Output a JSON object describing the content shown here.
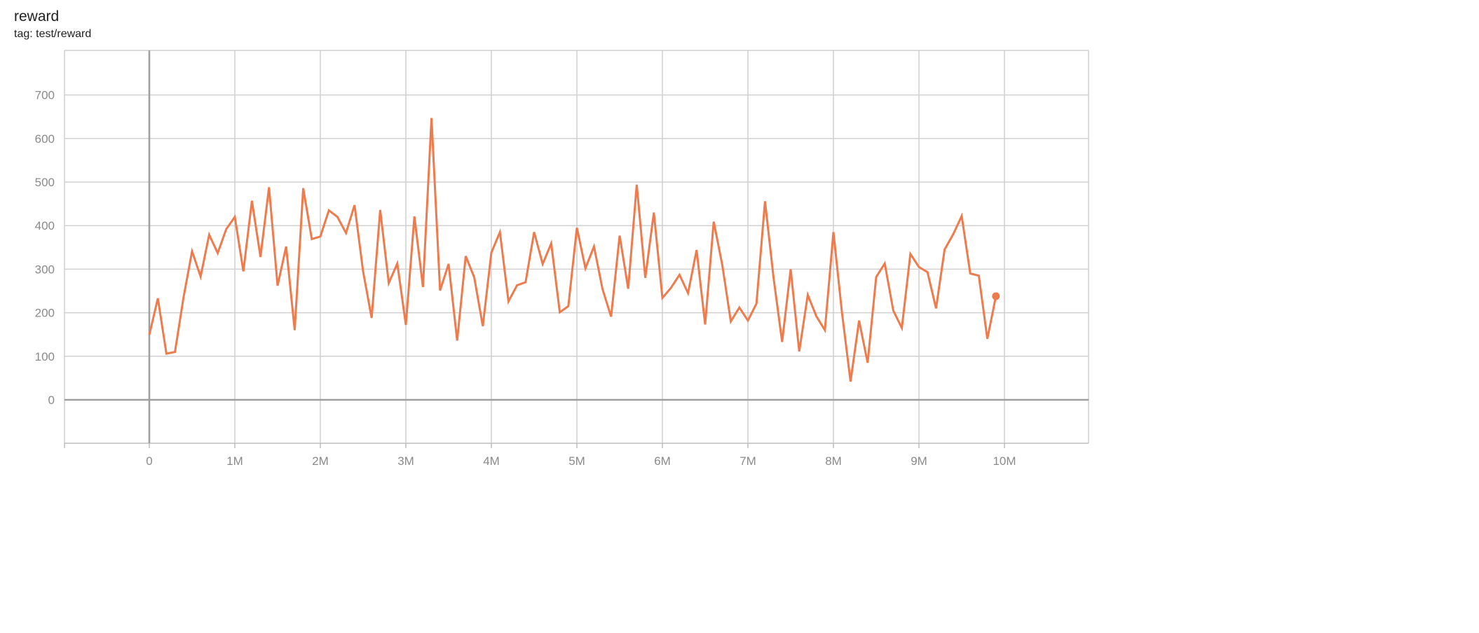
{
  "chart_data": {
    "type": "line",
    "title": "reward",
    "subtitle": "tag: test/reward",
    "xlabel": "",
    "ylabel": "",
    "xlim": [
      -1000000,
      11000000
    ],
    "ylim": [
      -100,
      800
    ],
    "grid": true,
    "x_ticks": [
      0,
      1000000,
      2000000,
      3000000,
      4000000,
      5000000,
      6000000,
      7000000,
      8000000,
      9000000,
      10000000
    ],
    "x_tick_labels": [
      "0",
      "1M",
      "2M",
      "3M",
      "4M",
      "5M",
      "6M",
      "7M",
      "8M",
      "9M",
      "10M"
    ],
    "y_ticks": [
      0,
      100,
      200,
      300,
      400,
      500,
      600,
      700
    ],
    "y_tick_labels": [
      "0",
      "100",
      "200",
      "300",
      "400",
      "500",
      "600",
      "700"
    ],
    "series": [
      {
        "color": "#ef7a4b",
        "x_start": 0,
        "x_step": 100000,
        "values": [
          149,
          233,
          106,
          110,
          235,
          341,
          283,
          379,
          337,
          392,
          420,
          295,
          457,
          328,
          488,
          262,
          352,
          160,
          486,
          369,
          375,
          435,
          420,
          383,
          447,
          295,
          188,
          436,
          268,
          313,
          172,
          421,
          259,
          647,
          251,
          312,
          136,
          330,
          281,
          169,
          338,
          385,
          226,
          263,
          270,
          385,
          312,
          359,
          201,
          215,
          395,
          302,
          352,
          254,
          191,
          377,
          255,
          494,
          280,
          430,
          234,
          257,
          287,
          245,
          344,
          173,
          409,
          310,
          180,
          212,
          182,
          221,
          456,
          280,
          133,
          300,
          111,
          241,
          192,
          160,
          385,
          200,
          42,
          182,
          85,
          282,
          313,
          205,
          165,
          335,
          305,
          293,
          210,
          345,
          380,
          422,
          290,
          285,
          140,
          238
        ]
      }
    ]
  }
}
